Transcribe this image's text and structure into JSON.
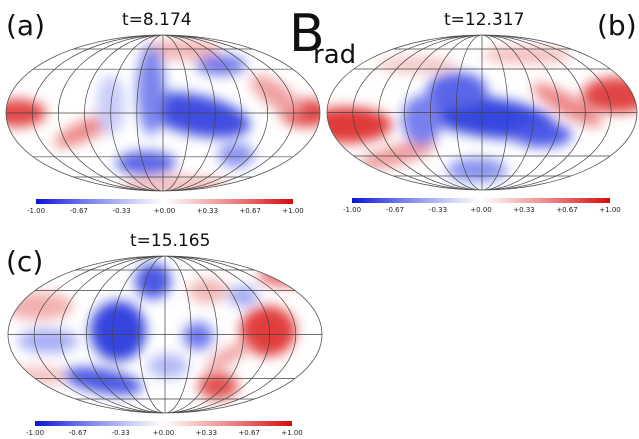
{
  "figure": {
    "quantity_symbol": "B",
    "quantity_subscript": "rad",
    "colorbar_ticks": [
      "-1.00",
      "-0.67",
      "-0.33",
      "+0.00",
      "+0.33",
      "+0.67",
      "+1.00"
    ],
    "colorbar_colors": {
      "min": "#0a14d6",
      "zero": "#ffffff",
      "max": "#d80a0a"
    },
    "panels": [
      {
        "label": "(a)",
        "time": "t=8.174"
      },
      {
        "label": "(b)",
        "time": "t=12.317"
      },
      {
        "label": "(c)",
        "time": "t=15.165"
      }
    ]
  }
}
